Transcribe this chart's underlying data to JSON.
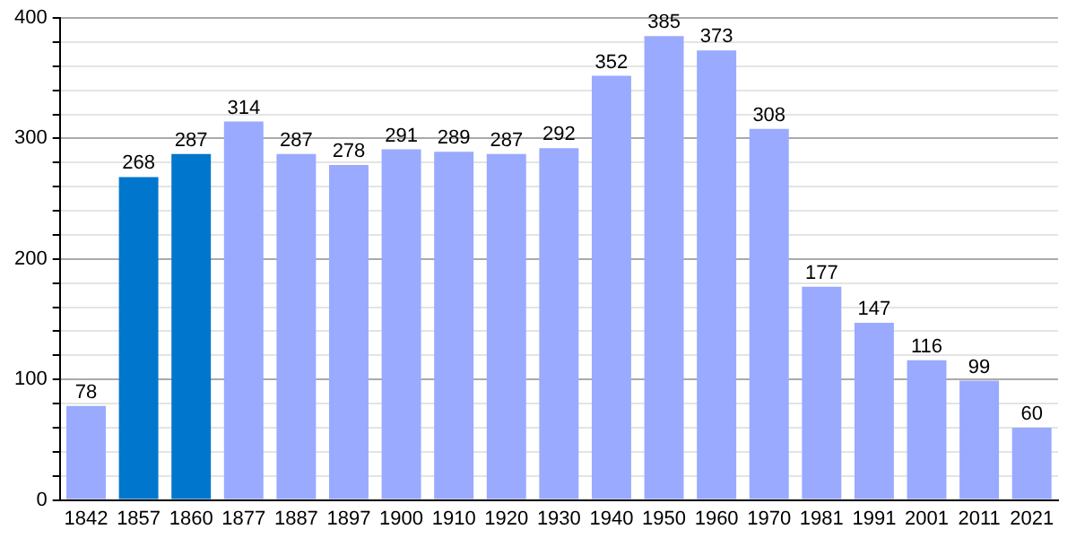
{
  "chart_data": {
    "type": "bar",
    "categories": [
      "1842",
      "1857",
      "1860",
      "1877",
      "1887",
      "1897",
      "1900",
      "1910",
      "1920",
      "1930",
      "1940",
      "1950",
      "1960",
      "1970",
      "1981",
      "1991",
      "2001",
      "2011",
      "2021"
    ],
    "values": [
      78,
      268,
      287,
      314,
      287,
      278,
      291,
      289,
      287,
      292,
      352,
      385,
      373,
      308,
      177,
      147,
      116,
      99,
      60
    ],
    "colors": [
      "#99aaff",
      "#0077cc",
      "#0077cc",
      "#99aaff",
      "#99aaff",
      "#99aaff",
      "#99aaff",
      "#99aaff",
      "#99aaff",
      "#99aaff",
      "#99aaff",
      "#99aaff",
      "#99aaff",
      "#99aaff",
      "#99aaff",
      "#99aaff",
      "#99aaff",
      "#99aaff",
      "#99aaff"
    ],
    "ylim": [
      0,
      400
    ],
    "yticks": [
      0,
      {
        "value": 20,
        "label": null
      },
      {
        "value": 40,
        "label": null
      },
      {
        "value": 60,
        "label": null
      },
      {
        "value": 80,
        "label": null
      },
      100,
      {
        "value": 120,
        "label": null
      },
      {
        "value": 140,
        "label": null
      },
      {
        "value": 160,
        "label": null
      },
      {
        "value": 180,
        "label": null
      },
      200,
      {
        "value": 220,
        "label": null
      },
      {
        "value": 240,
        "label": null
      },
      {
        "value": 260,
        "label": null
      },
      {
        "value": 280,
        "label": null
      },
      300,
      {
        "value": 320,
        "label": null
      },
      {
        "value": 340,
        "label": null
      },
      {
        "value": 360,
        "label": null
      },
      {
        "value": 380,
        "label": null
      },
      400
    ],
    "grid": "y",
    "data_labels": true
  }
}
